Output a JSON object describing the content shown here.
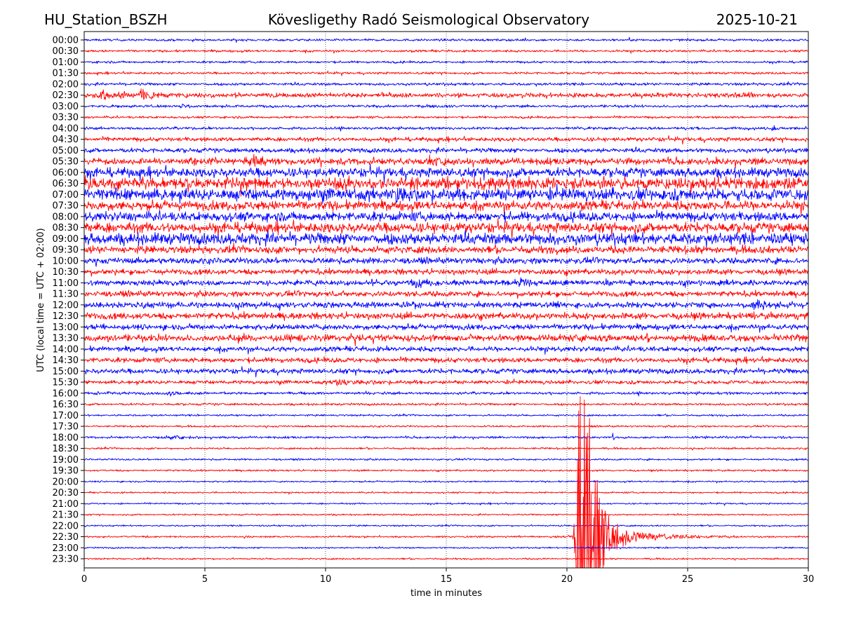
{
  "header": {
    "station": "HU_Station_BSZH",
    "observatory": "Kövesligethy Radó Seismological Observatory",
    "date": "2025-10-21"
  },
  "chart_data": {
    "type": "line",
    "subtype": "helicorder",
    "xlabel": "time in minutes",
    "ylabel": "UTC (local time = UTC + 02:00)",
    "xlim": [
      0,
      30
    ],
    "x_ticks": [
      "0",
      "5",
      "10",
      "15",
      "20",
      "25",
      "30"
    ],
    "grid": "vertical dotted at each x tick",
    "colors": [
      "#0000ff",
      "#ff0000"
    ],
    "rows": [
      "00:00",
      "00:30",
      "01:00",
      "01:30",
      "02:00",
      "02:30",
      "03:00",
      "03:30",
      "04:00",
      "04:30",
      "05:00",
      "05:30",
      "06:00",
      "06:30",
      "07:00",
      "07:30",
      "08:00",
      "08:30",
      "09:00",
      "09:30",
      "10:00",
      "10:30",
      "11:00",
      "11:30",
      "12:00",
      "12:30",
      "13:00",
      "13:30",
      "14:00",
      "14:30",
      "15:00",
      "15:30",
      "16:00",
      "16:30",
      "17:00",
      "17:30",
      "18:00",
      "18:30",
      "19:00",
      "19:30",
      "20:00",
      "20:30",
      "21:00",
      "21:30",
      "22:00",
      "22:30",
      "23:00",
      "23:30"
    ],
    "noise_level_rows": [
      0.05,
      0.05,
      0.05,
      0.05,
      0.06,
      0.1,
      0.06,
      0.05,
      0.06,
      0.09,
      0.1,
      0.15,
      0.2,
      0.25,
      0.25,
      0.2,
      0.2,
      0.22,
      0.25,
      0.16,
      0.13,
      0.12,
      0.12,
      0.12,
      0.13,
      0.14,
      0.12,
      0.15,
      0.11,
      0.11,
      0.11,
      0.08,
      0.06,
      0.05,
      0.04,
      0.04,
      0.05,
      0.04,
      0.04,
      0.04,
      0.035,
      0.035,
      0.035,
      0.035,
      0.035,
      0.04,
      0.035,
      0.035
    ],
    "events": [
      {
        "row": 5,
        "minute": 0.8,
        "amplitude": 0.35,
        "duration": 1.5
      },
      {
        "row": 5,
        "minute": 2.35,
        "amplitude": 0.6,
        "duration": 0.4
      },
      {
        "row": 5,
        "minute": 26.2,
        "amplitude": 0.2,
        "duration": 1.0
      },
      {
        "row": 6,
        "minute": 4.0,
        "amplitude": 0.2,
        "duration": 0.6
      },
      {
        "row": 8,
        "minute": 28.5,
        "amplitude": 0.3,
        "duration": 0.2
      },
      {
        "row": 11,
        "minute": 7.0,
        "amplitude": 0.4,
        "duration": 0.6
      },
      {
        "row": 11,
        "minute": 14.3,
        "amplitude": 0.4,
        "duration": 0.7
      },
      {
        "row": 13,
        "minute": 1.6,
        "amplitude": 0.5,
        "duration": 0.6
      },
      {
        "row": 13,
        "minute": 5.8,
        "amplitude": 0.5,
        "duration": 0.6
      },
      {
        "row": 13,
        "minute": 16.2,
        "amplitude": 0.6,
        "duration": 0.6
      },
      {
        "row": 14,
        "minute": 12.9,
        "amplitude": 0.9,
        "duration": 0.5
      },
      {
        "row": 22,
        "minute": 13.6,
        "amplitude": 0.6,
        "duration": 0.5
      },
      {
        "row": 22,
        "minute": 18.1,
        "amplitude": 0.5,
        "duration": 0.5
      },
      {
        "row": 24,
        "minute": 27.7,
        "amplitude": 0.4,
        "duration": 1.2
      },
      {
        "row": 27,
        "minute": 6.2,
        "amplitude": 0.5,
        "duration": 0.4
      },
      {
        "row": 31,
        "minute": 10.5,
        "amplitude": 0.3,
        "duration": 1.2
      },
      {
        "row": 32,
        "minute": 3.5,
        "amplitude": 0.25,
        "duration": 0.6
      },
      {
        "row": 36,
        "minute": 3.3,
        "amplitude": 0.18,
        "duration": 1.5
      },
      {
        "row": 36,
        "minute": 21.9,
        "amplitude": 0.6,
        "duration": 0.08
      },
      {
        "row": 45,
        "minute": 20.5,
        "amplitude": 30,
        "duration": 0.45
      },
      {
        "row": 45,
        "minute": 20.8,
        "amplitude": 1.2,
        "duration": 2.0
      }
    ]
  }
}
